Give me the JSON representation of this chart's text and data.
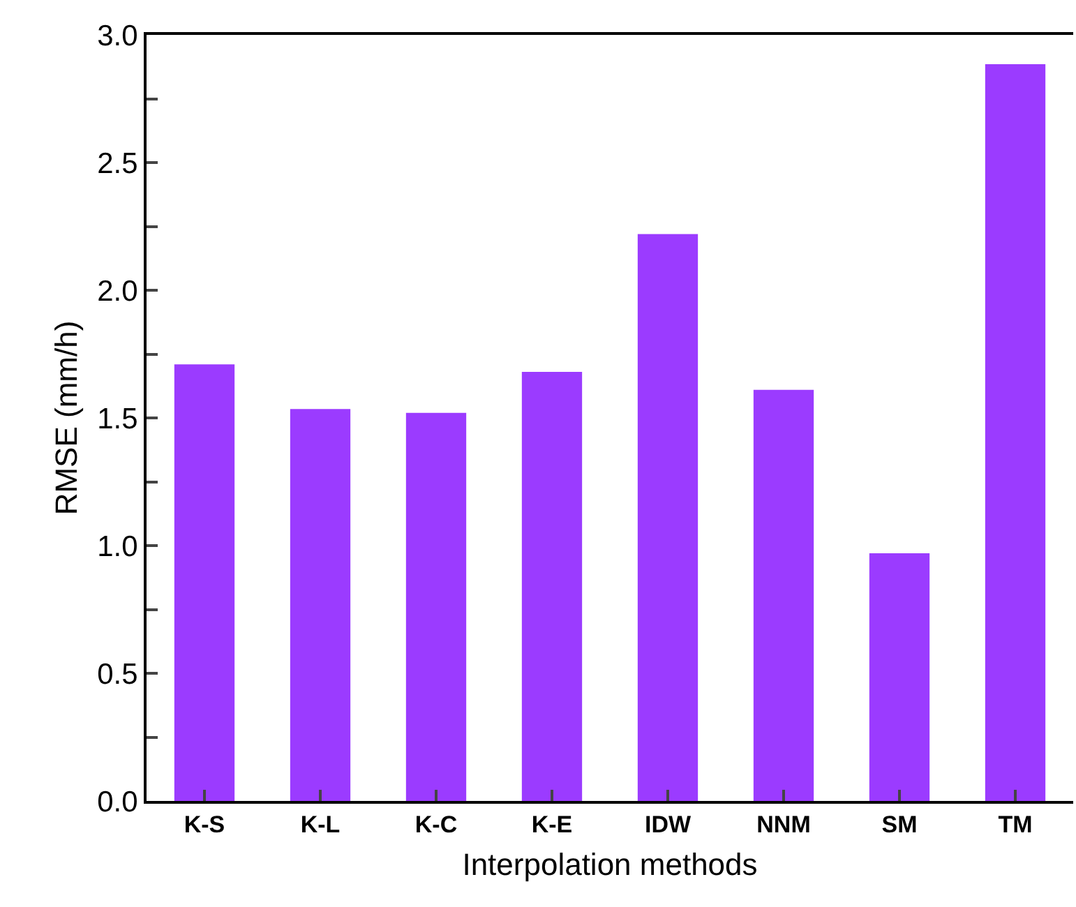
{
  "chart_data": {
    "type": "bar",
    "xlabel": "Interpolation methods",
    "ylabel": "RMSE (mm/h)",
    "categories": [
      "K-S",
      "K-L",
      "K-C",
      "K-E",
      "IDW",
      "NNM",
      "SM",
      "TM"
    ],
    "values": [
      1.71,
      1.535,
      1.52,
      1.68,
      2.22,
      1.61,
      0.97,
      2.885
    ],
    "color": "#9b3bff",
    "ylim": [
      0,
      3.0
    ],
    "yticks": [
      {
        "value": 0,
        "label": "0.0"
      },
      {
        "value": 0.25,
        "label": null
      },
      {
        "value": 0.5,
        "label": "0.5"
      },
      {
        "value": 0.75,
        "label": null
      },
      {
        "value": 1,
        "label": "1.0"
      },
      {
        "value": 1.25,
        "label": null
      },
      {
        "value": 1.5,
        "label": "1.5"
      },
      {
        "value": 1.75,
        "label": null
      },
      {
        "value": 2,
        "label": "2.0"
      },
      {
        "value": 2.25,
        "label": null
      },
      {
        "value": 2.5,
        "label": "2.5"
      },
      {
        "value": 2.75,
        "label": null
      },
      {
        "value": 3,
        "label": "3.0"
      }
    ],
    "legend": false
  }
}
